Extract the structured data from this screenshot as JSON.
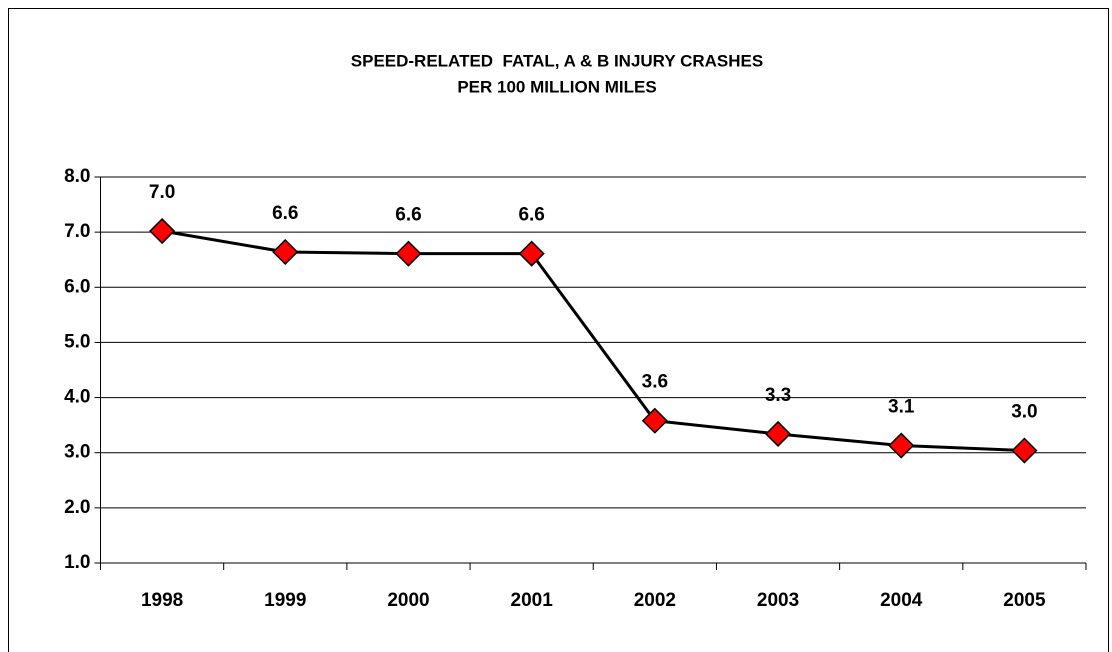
{
  "chart_data": {
    "type": "line",
    "title": "SPEED-RELATED  FATAL, A & B INJURY CRASHES",
    "subtitle": "PER 100 MILLION MILES",
    "categories": [
      "1998",
      "1999",
      "2000",
      "2001",
      "2002",
      "2003",
      "2004",
      "2005"
    ],
    "series": [
      {
        "color": "#ff0000",
        "line_color": "#000000",
        "values": [
          7.02,
          6.64,
          6.61,
          6.61,
          3.58,
          3.34,
          3.13,
          3.04
        ],
        "value_labels": [
          "7.0",
          "6.6",
          "6.6",
          "6.6",
          "3.6",
          "3.3",
          "3.1",
          "3.0"
        ]
      }
    ],
    "ylim": [
      1,
      8
    ],
    "yticks": [
      {
        "value": 1,
        "label": "1.0"
      },
      {
        "value": 2,
        "label": "2.0"
      },
      {
        "value": 3,
        "label": "3.0"
      },
      {
        "value": 4,
        "label": "4.0"
      },
      {
        "value": 5,
        "label": "5.0"
      },
      {
        "value": 6,
        "label": "6.0"
      },
      {
        "value": 7,
        "label": "7.0"
      },
      {
        "value": 8,
        "label": "8.0"
      }
    ],
    "grid": true
  }
}
